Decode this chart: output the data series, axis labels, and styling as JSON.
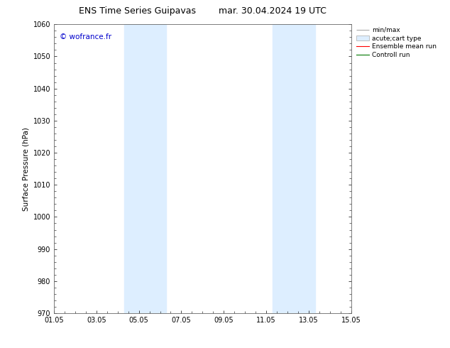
{
  "title_left": "ENS Time Series Guipavas",
  "title_right": "mar. 30.04.2024 19 UTC",
  "ylabel": "Surface Pressure (hPa)",
  "xlim": [
    0,
    14
  ],
  "ylim": [
    970,
    1060
  ],
  "yticks": [
    970,
    980,
    990,
    1000,
    1010,
    1020,
    1030,
    1040,
    1050,
    1060
  ],
  "xtick_labels": [
    "01.05",
    "03.05",
    "05.05",
    "07.05",
    "09.05",
    "11.05",
    "13.05",
    "15.05"
  ],
  "xtick_positions": [
    0,
    2,
    4,
    6,
    8,
    10,
    12,
    14
  ],
  "shaded_bands": [
    {
      "xmin": 3.3,
      "xmax": 5.3
    },
    {
      "xmin": 10.3,
      "xmax": 12.3
    }
  ],
  "shaded_color": "#ddeeff",
  "watermark_text": "© wofrance.fr",
  "watermark_color": "#0000cc",
  "legend_labels": [
    "min/max",
    "acute;cart type",
    "Ensemble mean run",
    "Controll run"
  ],
  "legend_line_colors": [
    "#aaaaaa",
    "#bbccdd",
    "#ff0000",
    "#007700"
  ],
  "background_color": "#ffffff",
  "title_fontsize": 9,
  "axis_fontsize": 7.5,
  "tick_fontsize": 7,
  "legend_fontsize": 6.5,
  "watermark_fontsize": 7.5
}
